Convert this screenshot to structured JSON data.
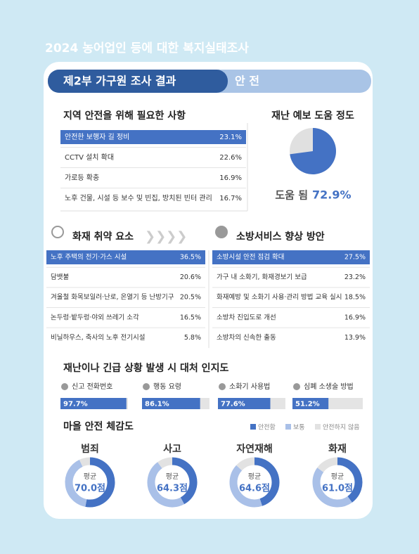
{
  "header": {
    "title": "2024 농어업인 등에 대한 복지실태조사",
    "part": "제2부 가구원 조사 결과",
    "section": "안 전"
  },
  "needs": {
    "title": "지역 안전을 위해 필요한 사항",
    "items": [
      {
        "label": "안전한 보행자 길 정비",
        "value": "23.1%"
      },
      {
        "label": "CCTV 설치 확대",
        "value": "22.6%"
      },
      {
        "label": "가로등 확충",
        "value": "16.9%"
      },
      {
        "label": "노후 건물, 시설 등 보수 및 빈집, 방치된 빈터 관리",
        "value": "16.7%"
      }
    ]
  },
  "forecast": {
    "title": "재난 예보 도움 정도",
    "label": "도움 됨",
    "value": 72.9,
    "value_label": "72.9%"
  },
  "fire": {
    "title": "화재 취약 요소",
    "items": [
      {
        "label": "노후 주택의 전기·가스 시설",
        "value": "36.5%"
      },
      {
        "label": "담뱃불",
        "value": "20.6%"
      },
      {
        "label": "겨울철 화목보일러·난로, 온열기 등 난방기구",
        "value": "20.5%"
      },
      {
        "label": "논두렁·밭두렁·야외 쓰레기 소각",
        "value": "16.5%"
      },
      {
        "label": "비닐하우스, 축사의 노후 전기시설",
        "value": "5.8%"
      }
    ]
  },
  "fire_service": {
    "title": "소방서비스 향상 방안",
    "items": [
      {
        "label": "소방시설 안전 점검 확대",
        "value": "27.5%"
      },
      {
        "label": "가구 내 소화기, 화재경보기 보급",
        "value": "23.2%"
      },
      {
        "label": "화재예방 및 소화기 사용·관리 방법 교육 실시",
        "value": "18.5%"
      },
      {
        "label": "소방차 진입도로 개선",
        "value": "16.9%"
      },
      {
        "label": "소방차의 신속한 출동",
        "value": "13.9%"
      }
    ]
  },
  "awareness": {
    "title": "재난이나 긴급 상황 발생 시 대처 인지도",
    "items": [
      {
        "label": "신고 전화번호",
        "value": 97.7,
        "value_label": "97.7%"
      },
      {
        "label": "행동 요령",
        "value": 86.1,
        "value_label": "86.1%"
      },
      {
        "label": "소화기 사용법",
        "value": 77.6,
        "value_label": "77.6%"
      },
      {
        "label": "심폐 소생술 방법",
        "value": 51.2,
        "value_label": "51.2%"
      }
    ]
  },
  "perception": {
    "title": "마을 안전 체감도",
    "legend": [
      {
        "name": "안전함",
        "color": "#4472c4"
      },
      {
        "name": "보통",
        "color": "#a9c0e8"
      },
      {
        "name": "안전하지 않음",
        "color": "#e2e2e2"
      }
    ],
    "items": [
      {
        "label": "범죄",
        "average": "평균",
        "score": "70.0점",
        "segments": [
          53,
          40,
          7
        ]
      },
      {
        "label": "사고",
        "average": "평균",
        "score": "64.3점",
        "segments": [
          42,
          48,
          10
        ]
      },
      {
        "label": "자연재해",
        "average": "평균",
        "score": "64.6점",
        "segments": [
          45,
          42,
          13
        ]
      },
      {
        "label": "화재",
        "average": "평균",
        "score": "61.0점",
        "segments": [
          40,
          45,
          15
        ]
      }
    ]
  }
}
